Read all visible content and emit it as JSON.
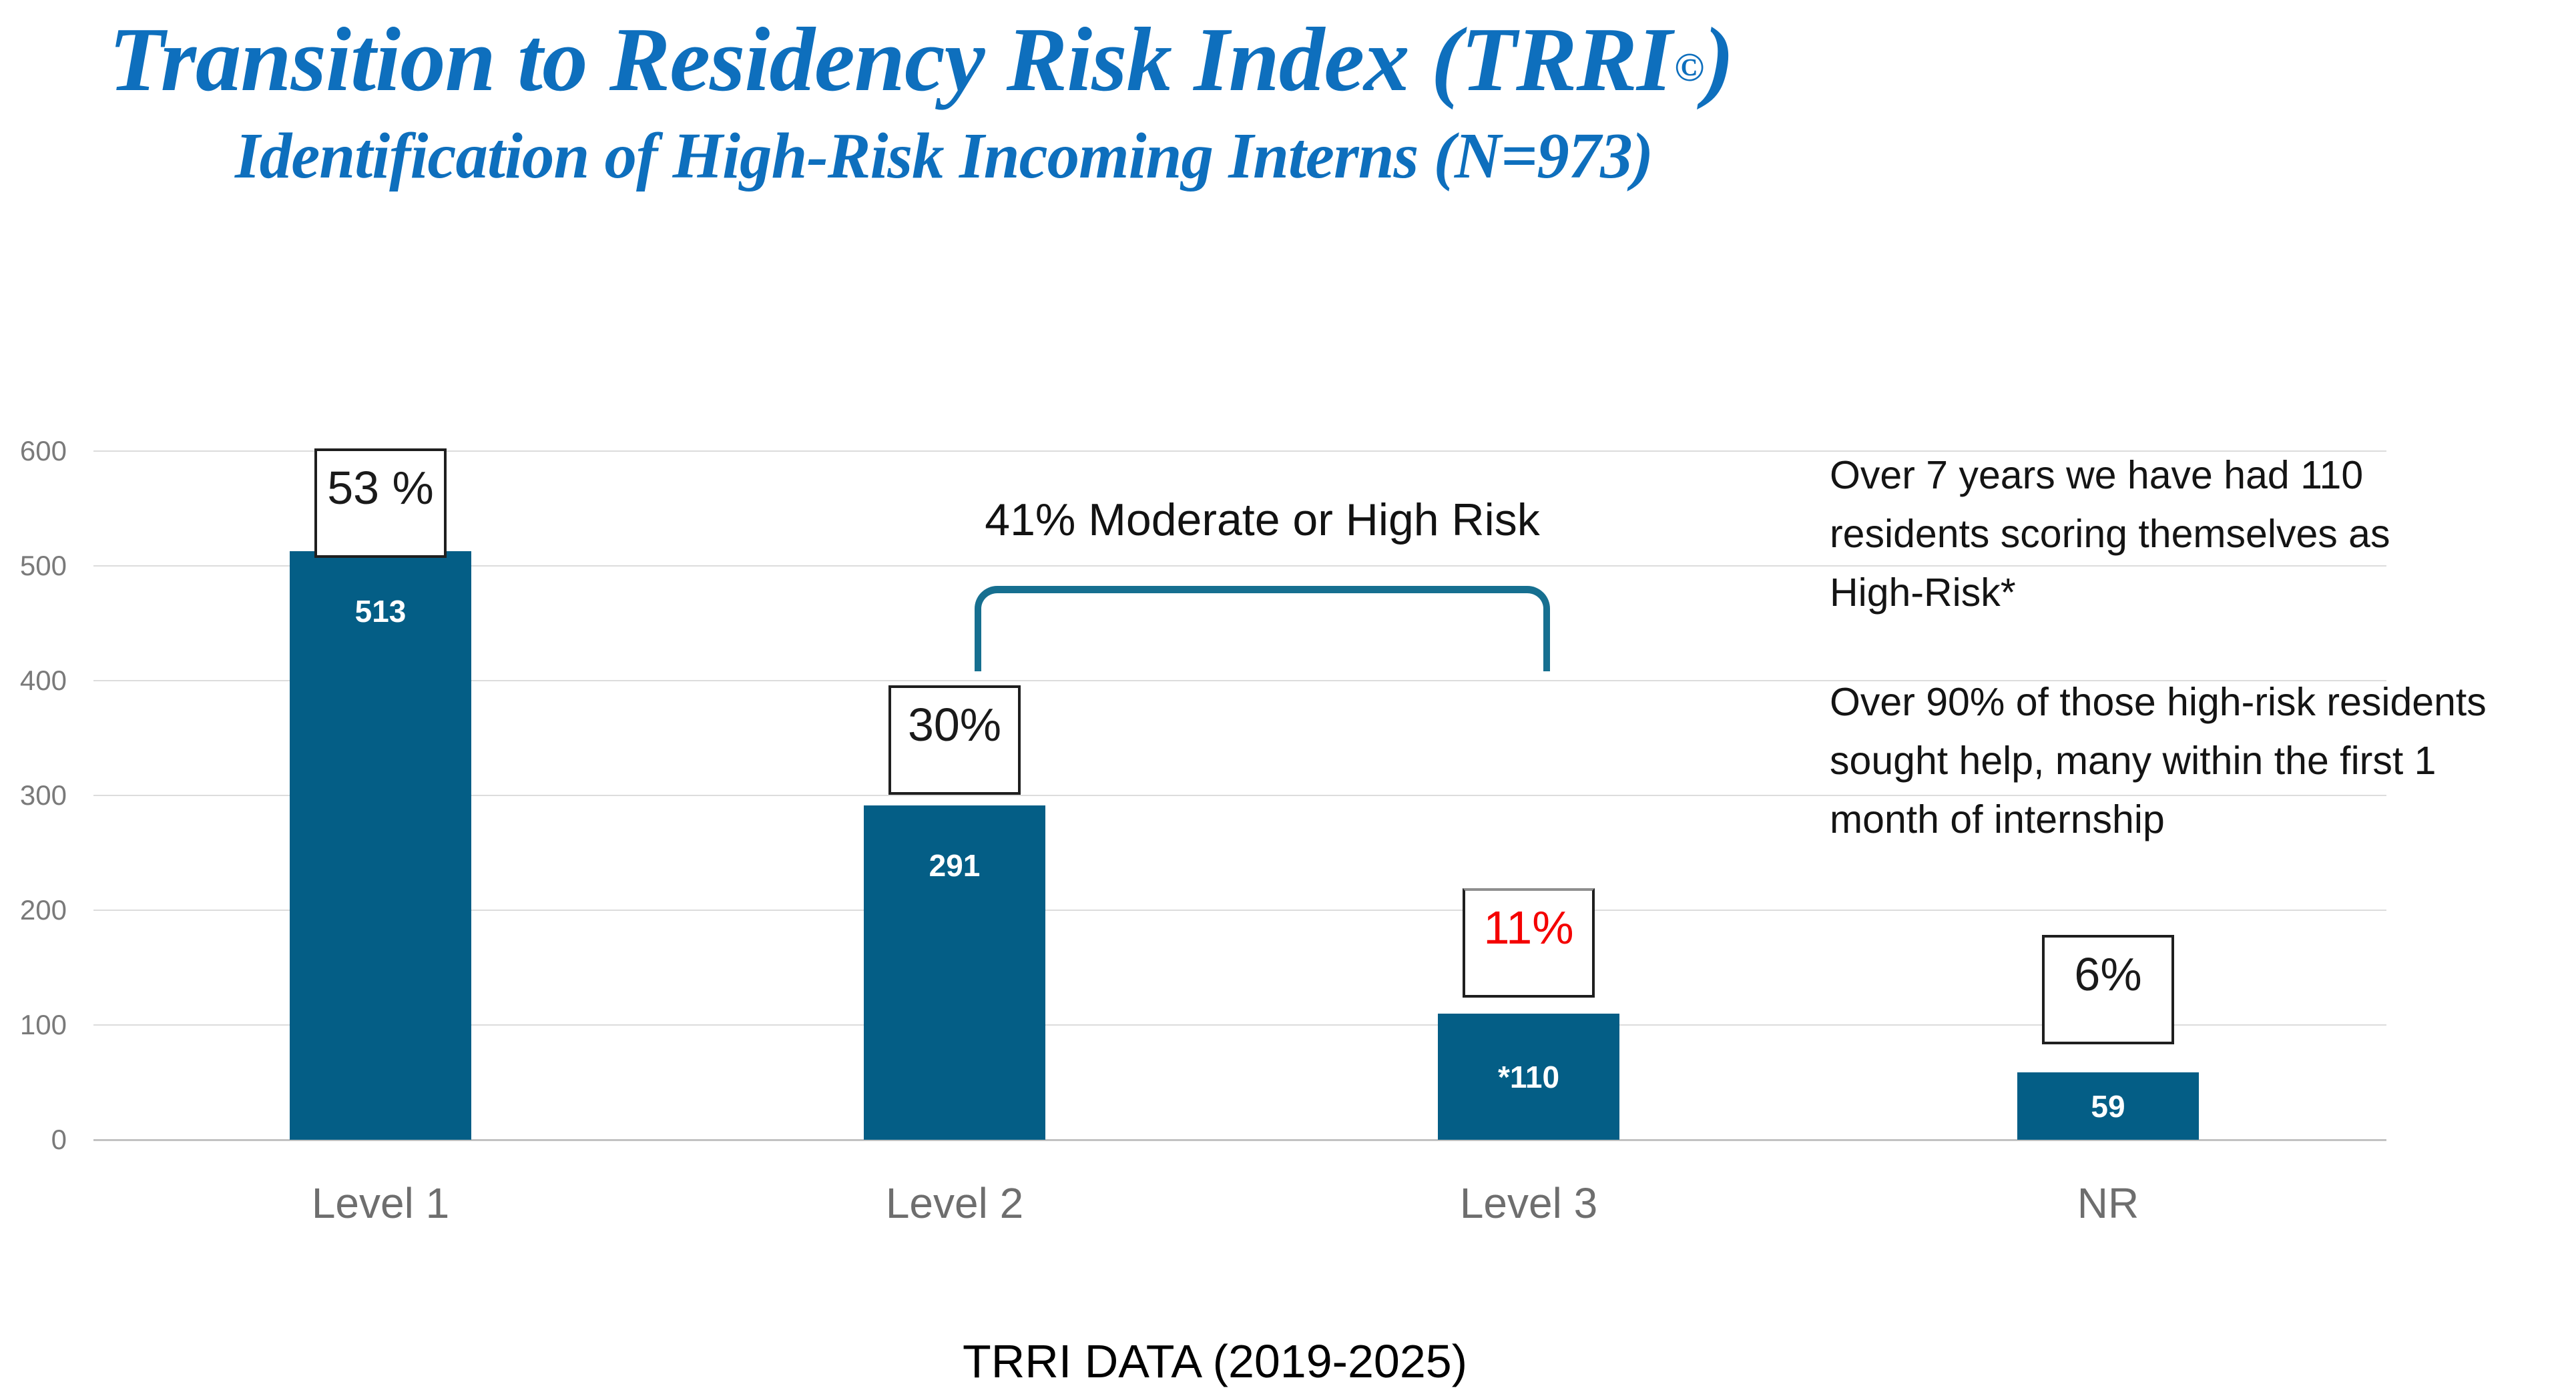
{
  "slide": {
    "title": {
      "prefix": "Transition to Residency Risk Index (TRRI",
      "copyright_mark": "©",
      "suffix": ")"
    },
    "subtitle": "Identification of High-Risk Incoming Interns (N=973)"
  },
  "colors": {
    "title_blue": "#0E6FBD",
    "bar_teal": "#045E86",
    "bracket_teal": "#166F90",
    "percent_red": "#F40000",
    "gridline_gray": "#DCDCDC",
    "axis_text_gray": "#7A7A7A",
    "category_text_gray": "#6E6E6E"
  },
  "chart_data": {
    "type": "bar",
    "categories": [
      "Level 1",
      "Level 2",
      "Level 3",
      "NR"
    ],
    "values": [
      513,
      291,
      110,
      59
    ],
    "bar_value_labels": [
      "513",
      "291",
      "*110",
      "59"
    ],
    "percent_labels": [
      "53 %",
      "30%",
      "11%",
      "6%"
    ],
    "percent_label_colors": [
      "#1a1a1a",
      "#1a1a1a",
      "#F40000",
      "#1a1a1a"
    ],
    "title": "Transition to Residency Risk Index (TRRI©)",
    "xlabel": "",
    "ylabel": "",
    "ylim": [
      0,
      600
    ],
    "y_ticks": [
      0,
      100,
      200,
      300,
      400,
      500,
      600
    ],
    "grid": true,
    "legend": false
  },
  "annotations": {
    "bracket_label": "41% Moderate or High Risk",
    "note_paragraph1_lines": [
      "Over 7 years we have had 110",
      "residents scoring themselves as",
      "High-Risk*"
    ],
    "note_paragraph2_lines": [
      "Over 90% of those high-risk residents",
      "sought help, many within the first 1",
      "month of internship"
    ],
    "caption": "TRRI DATA (2019-2025)"
  }
}
